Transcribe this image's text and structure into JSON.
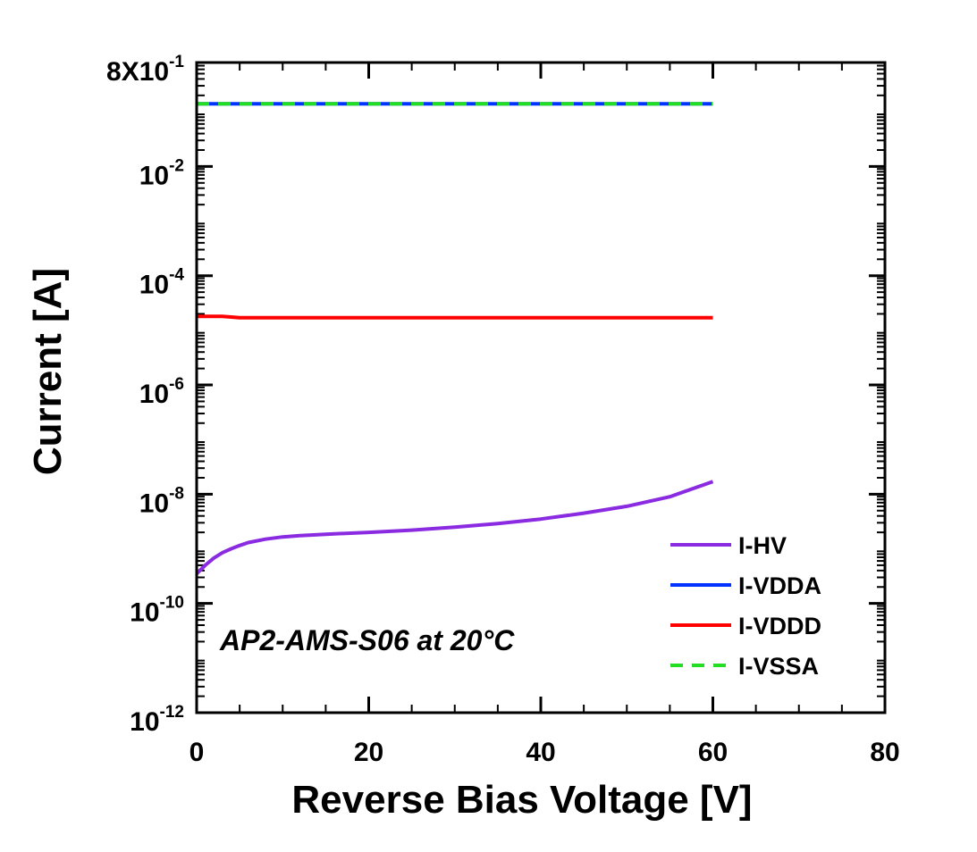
{
  "chart_data": {
    "type": "line",
    "xlabel": "Reverse Bias Voltage [V]",
    "ylabel": "Current [A]",
    "xlim": [
      0,
      80
    ],
    "ylim": [
      1e-12,
      0.8
    ],
    "yscale": "log",
    "grid": false,
    "legend_position": "bottom-right",
    "annotation": "AP2-AMS-S06 at 20°C",
    "x_ticks": [
      {
        "value": 0,
        "label": "0"
      },
      {
        "value": 20,
        "label": "20"
      },
      {
        "value": 40,
        "label": "40"
      },
      {
        "value": 60,
        "label": "60"
      },
      {
        "value": 80,
        "label": "80"
      }
    ],
    "y_ticks": [
      {
        "value": 1e-12,
        "base": "10",
        "exponent": "-12"
      },
      {
        "value": 1e-10,
        "base": "10",
        "exponent": "-10"
      },
      {
        "value": 1e-08,
        "base": "10",
        "exponent": "-8"
      },
      {
        "value": 1e-06,
        "base": "10",
        "exponent": "-6"
      },
      {
        "value": 0.0001,
        "base": "10",
        "exponent": "-4"
      },
      {
        "value": 0.01,
        "base": "10",
        "exponent": "-2"
      },
      {
        "value": 0.8,
        "base": "8X10",
        "exponent": "-1"
      }
    ],
    "series": [
      {
        "name": "I-HV",
        "color": "#8a2be2",
        "dash": "solid",
        "x": [
          0,
          1,
          2,
          3,
          4,
          5,
          6,
          8,
          10,
          12,
          15,
          20,
          25,
          30,
          35,
          40,
          45,
          50,
          55,
          60
        ],
        "values": [
          3.5e-10,
          5e-10,
          6.8e-10,
          8.5e-10,
          1e-09,
          1.15e-09,
          1.3e-09,
          1.5e-09,
          1.65e-09,
          1.75e-09,
          1.85e-09,
          2e-09,
          2.2e-09,
          2.5e-09,
          2.9e-09,
          3.5e-09,
          4.5e-09,
          6e-09,
          9e-09,
          1.7e-08
        ]
      },
      {
        "name": "I-VDDA",
        "color": "#0033ff",
        "dash": "solid",
        "x": [
          0,
          60
        ],
        "values": [
          0.14,
          0.14
        ]
      },
      {
        "name": "I-VDDD",
        "color": "#ff0000",
        "dash": "solid",
        "x": [
          0,
          3,
          4,
          5,
          60
        ],
        "values": [
          1.8e-05,
          1.8e-05,
          1.75e-05,
          1.7e-05,
          1.7e-05
        ]
      },
      {
        "name": "I-VSSA",
        "color": "#22dd22",
        "dash": "dashed",
        "x": [
          0,
          60
        ],
        "values": [
          0.14,
          0.14
        ]
      }
    ]
  }
}
